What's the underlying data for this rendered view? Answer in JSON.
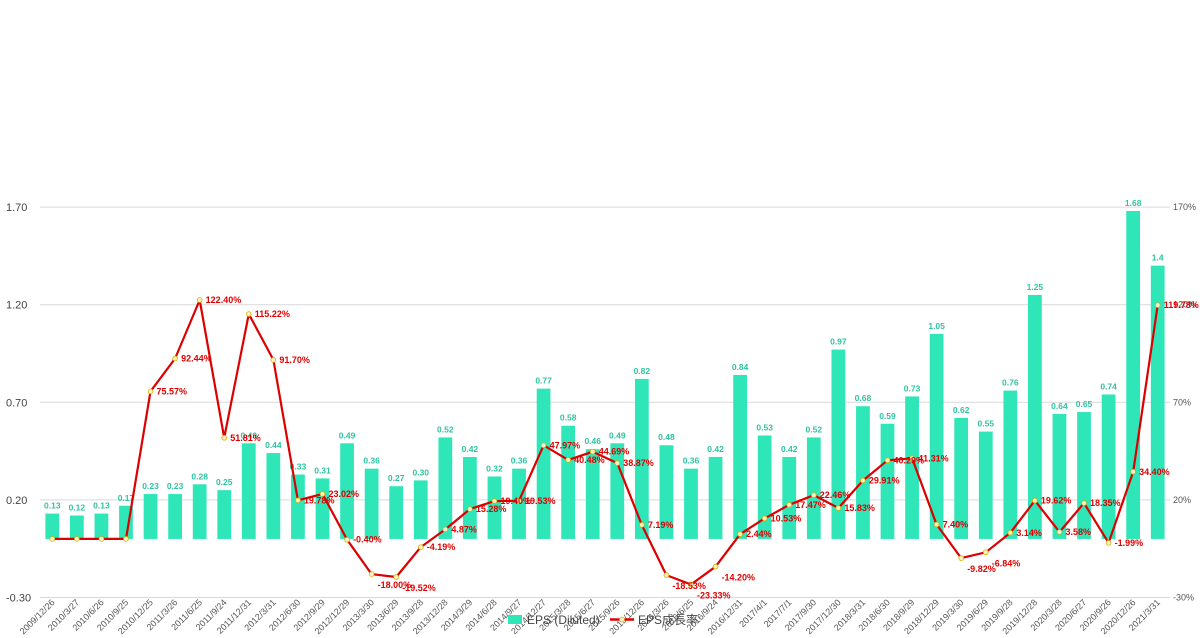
{
  "chart_data": {
    "type": "bar+line",
    "categories": [
      "2009/12/26",
      "2010/3/27",
      "2010/6/26",
      "2010/9/25",
      "2010/12/25",
      "2011/3/26",
      "2011/6/25",
      "2011/9/24",
      "2011/12/31",
      "2012/3/31",
      "2012/6/30",
      "2012/9/29",
      "2012/12/29",
      "2013/3/30",
      "2013/6/29",
      "2013/9/28",
      "2013/12/28",
      "2014/3/29",
      "2014/6/28",
      "2014/9/27",
      "2014/12/27",
      "2015/3/28",
      "2015/6/27",
      "2015/9/26",
      "2015/12/26",
      "2016/3/26",
      "2016/6/25",
      "2016/9/24",
      "2016/12/31",
      "2017/4/1",
      "2017/7/1",
      "2017/9/30",
      "2017/12/30",
      "2018/3/31",
      "2018/6/30",
      "2018/9/29",
      "2018/12/29",
      "2019/3/30",
      "2019/6/29",
      "2019/9/28",
      "2019/12/28",
      "2020/3/28",
      "2020/6/27",
      "2020/9/26",
      "2020/12/26",
      "2021/3/31"
    ],
    "series": [
      {
        "name": "EPS (Diluted)",
        "type": "bar",
        "axis": "left",
        "color": "#2ee6b8",
        "values": [
          0.13,
          0.12,
          0.13,
          0.17,
          0.23,
          0.23,
          0.28,
          0.25,
          0.49,
          0.44,
          0.33,
          0.31,
          0.49,
          0.36,
          0.27,
          0.3,
          0.52,
          0.42,
          0.32,
          0.36,
          0.77,
          0.58,
          0.46,
          0.49,
          0.82,
          0.48,
          0.36,
          0.42,
          0.84,
          0.53,
          0.42,
          0.52,
          0.97,
          0.68,
          0.59,
          0.73,
          1.05,
          0.62,
          0.55,
          0.76,
          1.25,
          0.64,
          0.65,
          0.74,
          1.68,
          1.4
        ],
        "labels": [
          "0.13",
          "0.12",
          "0.13",
          "0.17",
          "0.23",
          "0.23",
          "0.28",
          "0.25",
          "0.49",
          "0.44",
          "0.33",
          "0.31",
          "0.49",
          "0.36",
          "0.27",
          "0.30",
          "0.52",
          "0.42",
          "0.32",
          "0.36",
          "0.77",
          "0.58",
          "0.46",
          "0.49",
          "0.82",
          "0.48",
          "0.36",
          "0.42",
          "0.84",
          "0.53",
          "0.42",
          "0.52",
          "0.97",
          "0.68",
          "0.59",
          "0.73",
          "1.05",
          "0.62",
          "0.55",
          "0.76",
          "1.25",
          "0.64",
          "0.65",
          "0.74",
          "1.68",
          "1.4"
        ]
      },
      {
        "name": "EPS成長率",
        "type": "line",
        "axis": "right",
        "color": "#dd0000",
        "values": [
          null,
          null,
          null,
          null,
          75.57,
          92.44,
          122.4,
          51.81,
          115.22,
          91.7,
          19.78,
          23.02,
          -0.4,
          -18.0,
          -19.52,
          -4.19,
          4.87,
          15.28,
          19.4,
          19.53,
          47.97,
          40.48,
          44.69,
          38.87,
          7.19,
          -18.53,
          -23.33,
          -14.2,
          2.44,
          10.53,
          17.47,
          22.46,
          15.83,
          29.91,
          40.29,
          41.31,
          7.4,
          -9.82,
          -6.84,
          3.14,
          19.62,
          3.58,
          18.35,
          -1.99,
          34.4,
          119.78
        ],
        "labels": [
          "",
          "",
          "",
          "",
          "75.57%",
          "92.44%",
          "122.40%",
          "51.81%",
          "115.22%",
          "91.70%",
          "19.78%",
          "23.02%",
          "-0.40%",
          "-18.00%",
          "-19.52%",
          "-4.19%",
          "4.87%",
          "15.28%",
          "19.40%",
          "19.53%",
          "47.97%",
          "40.48%",
          "44.69%",
          "38.87%",
          "7.19%",
          "-18.53%",
          "-23.33%",
          "-14.20%",
          "2.44%",
          "10.53%",
          "17.47%",
          "22.46%",
          "15.83%",
          "29.91%",
          "40.29%",
          "41.31%",
          "7.40%",
          "-9.82%",
          "-6.84%",
          "3.14%",
          "19.62%",
          "3.58%",
          "18.35%",
          "-1.99%",
          "34.40%",
          "119.78%"
        ]
      }
    ],
    "y_left": {
      "ticks": [
        "-0.30",
        "0.20",
        "0.70",
        "1.20",
        "1.70"
      ],
      "range": [
        -0.3,
        2.2
      ]
    },
    "y_right": {
      "ticks": [
        "-30%",
        "20%",
        "70%",
        "120%",
        "170%"
      ],
      "range": [
        -30,
        220
      ]
    },
    "grid": true,
    "legend": {
      "position": "bottom",
      "items": [
        "EPS (Diluted)",
        "EPS成長率"
      ]
    }
  }
}
